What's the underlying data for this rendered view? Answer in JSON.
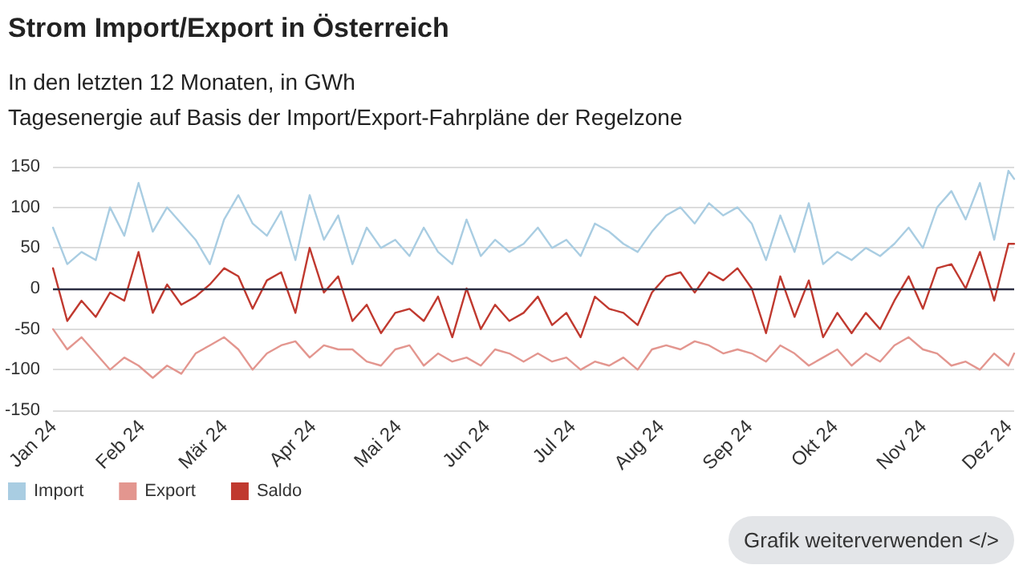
{
  "chart_data": {
    "type": "line",
    "title": "Strom Import/Export in Österreich",
    "subtitle": "In den letzten 12 Monaten, in GWh\nTagesenergie auf Basis der Import/Export-Fahrpläne der Regelzone",
    "annotations": [
      "Grafik weiterverwenden </>"
    ],
    "x": [
      "2024-01-01",
      "2024-01-06",
      "2024-01-11",
      "2024-01-16",
      "2024-01-21",
      "2024-01-26",
      "2024-01-31",
      "2024-02-05",
      "2024-02-10",
      "2024-02-15",
      "2024-02-20",
      "2024-02-25",
      "2024-03-01",
      "2024-03-06",
      "2024-03-11",
      "2024-03-16",
      "2024-03-21",
      "2024-03-26",
      "2024-03-31",
      "2024-04-05",
      "2024-04-10",
      "2024-04-15",
      "2024-04-20",
      "2024-04-25",
      "2024-04-30",
      "2024-05-05",
      "2024-05-10",
      "2024-05-15",
      "2024-05-20",
      "2024-05-25",
      "2024-05-30",
      "2024-06-04",
      "2024-06-09",
      "2024-06-14",
      "2024-06-19",
      "2024-06-24",
      "2024-06-29",
      "2024-07-04",
      "2024-07-09",
      "2024-07-14",
      "2024-07-19",
      "2024-07-24",
      "2024-07-29",
      "2024-08-03",
      "2024-08-08",
      "2024-08-13",
      "2024-08-18",
      "2024-08-23",
      "2024-08-28",
      "2024-09-02",
      "2024-09-07",
      "2024-09-12",
      "2024-09-17",
      "2024-09-22",
      "2024-09-27",
      "2024-10-02",
      "2024-10-07",
      "2024-10-12",
      "2024-10-17",
      "2024-10-22",
      "2024-10-27",
      "2024-11-01",
      "2024-11-06",
      "2024-11-11",
      "2024-11-16",
      "2024-11-21",
      "2024-11-26",
      "2024-12-01",
      "2024-12-03"
    ],
    "series": [
      {
        "name": "Import",
        "color": "#a9cde2",
        "values": [
          75,
          30,
          45,
          35,
          100,
          65,
          130,
          70,
          100,
          80,
          60,
          30,
          85,
          115,
          80,
          65,
          95,
          35,
          115,
          60,
          90,
          30,
          75,
          50,
          60,
          40,
          75,
          45,
          30,
          85,
          40,
          60,
          45,
          55,
          75,
          50,
          60,
          40,
          80,
          70,
          55,
          45,
          70,
          90,
          100,
          80,
          105,
          90,
          100,
          80,
          35,
          90,
          45,
          105,
          30,
          45,
          35,
          50,
          40,
          55,
          75,
          50,
          100,
          120,
          85,
          130,
          60,
          145,
          135
        ]
      },
      {
        "name": "Export",
        "color": "#e3968f",
        "values": [
          -50,
          -75,
          -60,
          -80,
          -100,
          -85,
          -95,
          -110,
          -95,
          -105,
          -80,
          -70,
          -60,
          -75,
          -100,
          -80,
          -70,
          -65,
          -85,
          -70,
          -75,
          -75,
          -90,
          -95,
          -75,
          -70,
          -95,
          -80,
          -90,
          -85,
          -95,
          -75,
          -80,
          -90,
          -80,
          -90,
          -85,
          -100,
          -90,
          -95,
          -85,
          -100,
          -75,
          -70,
          -75,
          -65,
          -70,
          -80,
          -75,
          -80,
          -90,
          -70,
          -80,
          -95,
          -85,
          -75,
          -95,
          -80,
          -90,
          -70,
          -60,
          -75,
          -80,
          -95,
          -90,
          -100,
          -80,
          -95,
          -80
        ]
      },
      {
        "name": "Saldo",
        "color": "#c0392f",
        "values": [
          25,
          -40,
          -15,
          -35,
          -5,
          -15,
          45,
          -30,
          5,
          -20,
          -10,
          5,
          25,
          15,
          -25,
          10,
          20,
          -30,
          50,
          -5,
          15,
          -40,
          -20,
          -55,
          -30,
          -25,
          -40,
          -10,
          -60,
          0,
          -50,
          -20,
          -40,
          -30,
          -10,
          -45,
          -30,
          -60,
          -10,
          -25,
          -30,
          -45,
          -5,
          15,
          20,
          -5,
          20,
          10,
          25,
          0,
          -55,
          15,
          -35,
          10,
          -60,
          -30,
          -55,
          -30,
          -50,
          -15,
          15,
          -25,
          25,
          30,
          0,
          45,
          -15,
          55,
          55
        ]
      }
    ],
    "xlim": [
      "2024-01-01",
      "2024-12-03"
    ],
    "xticks": [
      {
        "value": "2024-01-01",
        "label": "Jan 24"
      },
      {
        "value": "2024-02-01",
        "label": "Feb 24"
      },
      {
        "value": "2024-03-01",
        "label": "Mär 24"
      },
      {
        "value": "2024-04-01",
        "label": "Apr 24"
      },
      {
        "value": "2024-05-01",
        "label": "Mai 24"
      },
      {
        "value": "2024-06-01",
        "label": "Jun 24"
      },
      {
        "value": "2024-07-01",
        "label": "Jul 24"
      },
      {
        "value": "2024-08-01",
        "label": "Aug 24"
      },
      {
        "value": "2024-09-01",
        "label": "Sep 24"
      },
      {
        "value": "2024-10-01",
        "label": "Okt 24"
      },
      {
        "value": "2024-11-01",
        "label": "Nov 24"
      },
      {
        "value": "2024-12-01",
        "label": "Dez 24"
      }
    ],
    "ylim": [
      -150,
      150
    ],
    "yticks": [
      -150,
      -100,
      -50,
      0,
      50,
      100,
      150
    ],
    "ref_lines": [
      {
        "axis": "y",
        "value": 0,
        "color": "#2b2d42"
      }
    ],
    "grid": "y",
    "legend": "bottom left",
    "marker": "none",
    "line_style": "solid"
  }
}
